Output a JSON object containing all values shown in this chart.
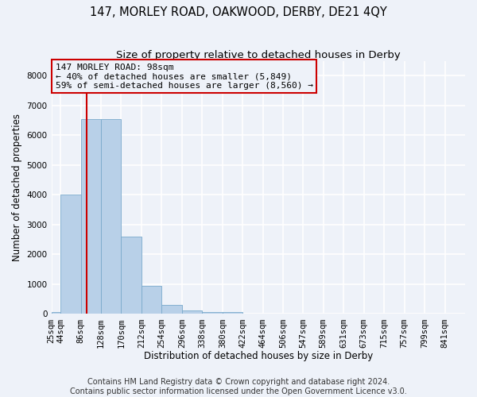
{
  "title": "147, MORLEY ROAD, OAKWOOD, DERBY, DE21 4QY",
  "subtitle": "Size of property relative to detached houses in Derby",
  "xlabel": "Distribution of detached houses by size in Derby",
  "ylabel": "Number of detached properties",
  "footer_line1": "Contains HM Land Registry data © Crown copyright and database right 2024.",
  "footer_line2": "Contains public sector information licensed under the Open Government Licence v3.0.",
  "bar_edges": [
    25,
    44,
    86,
    128,
    170,
    212,
    254,
    296,
    338,
    380,
    422,
    464,
    506,
    547,
    589,
    631,
    673,
    715,
    757,
    799,
    841
  ],
  "bar_heights": [
    60,
    4000,
    6550,
    6550,
    2600,
    950,
    300,
    110,
    75,
    60,
    0,
    0,
    0,
    0,
    0,
    0,
    0,
    0,
    0,
    0
  ],
  "bar_color": "#b8d0e8",
  "bar_edgecolor": "#7aaacc",
  "background_color": "#eef2f9",
  "grid_color": "#ffffff",
  "red_line_x": 98,
  "red_line_color": "#cc0000",
  "annotation_line1": "147 MORLEY ROAD: 98sqm",
  "annotation_line2": "← 40% of detached houses are smaller (5,849)",
  "annotation_line3": "59% of semi-detached houses are larger (8,560) →",
  "annotation_box_edgecolor": "#cc0000",
  "annotation_box_facecolor": "#eef2f9",
  "ylim": [
    0,
    8500
  ],
  "yticks": [
    0,
    1000,
    2000,
    3000,
    4000,
    5000,
    6000,
    7000,
    8000
  ],
  "title_fontsize": 10.5,
  "subtitle_fontsize": 9.5,
  "axis_label_fontsize": 8.5,
  "tick_fontsize": 7.5,
  "annotation_fontsize": 8,
  "footer_fontsize": 7
}
